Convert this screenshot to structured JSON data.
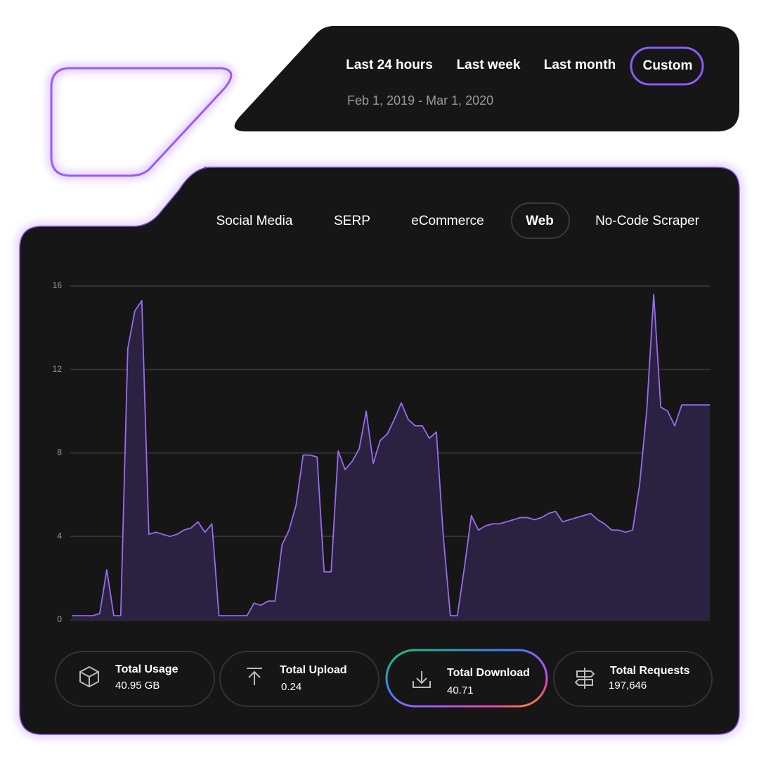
{
  "time_filter": {
    "options": [
      "Last 24 hours",
      "Last week",
      "Last month",
      "Custom"
    ],
    "selected": "Custom",
    "date_range": "Feb 1, 2019 - Mar 1, 2020"
  },
  "tabs": {
    "options": [
      "Social Media",
      "SERP",
      "eCommerce",
      "Web",
      "No-Code Scraper"
    ],
    "selected": "Web"
  },
  "chart_data": {
    "type": "area",
    "color": "#9a6bf0",
    "fill": "#2a2240",
    "ylim": [
      0,
      16
    ],
    "yticks": [
      0,
      4,
      8,
      12,
      16
    ],
    "grid": true,
    "values": [
      0.2,
      0.2,
      0.2,
      0.2,
      0.3,
      2.4,
      0.2,
      0.2,
      13,
      14.8,
      15.3,
      4.1,
      4.2,
      4.1,
      4,
      4.1,
      4.3,
      4.4,
      4.7,
      4.2,
      4.6,
      0.2,
      0.2,
      0.2,
      0.2,
      0.2,
      0.8,
      0.7,
      0.9,
      0.9,
      3.6,
      4.3,
      5.5,
      7.9,
      7.9,
      7.8,
      2.3,
      2.3,
      8.1,
      7.2,
      7.6,
      8.2,
      10,
      7.5,
      8.6,
      8.9,
      9.6,
      10.4,
      9.6,
      9.3,
      9.3,
      8.7,
      9,
      4,
      0.2,
      0.2,
      2.5,
      5,
      4.3,
      4.5,
      4.6,
      4.6,
      4.7,
      4.8,
      4.9,
      4.9,
      4.8,
      4.9,
      5.1,
      5.2,
      4.7,
      4.8,
      4.9,
      5,
      5.1,
      4.8,
      4.6,
      4.3,
      4.3,
      4.2,
      4.3,
      6.5,
      10,
      15.6,
      10.2,
      10,
      9.3,
      10.3,
      10.3,
      10.3,
      10.3,
      10.3
    ]
  },
  "stats": [
    {
      "label": "Total Usage",
      "value": "40.95 GB"
    },
    {
      "label": "Total Upload",
      "value": "0.24"
    },
    {
      "label": "Total Download",
      "value": "40.71"
    },
    {
      "label": "Total Requests",
      "value": "197,646"
    }
  ]
}
